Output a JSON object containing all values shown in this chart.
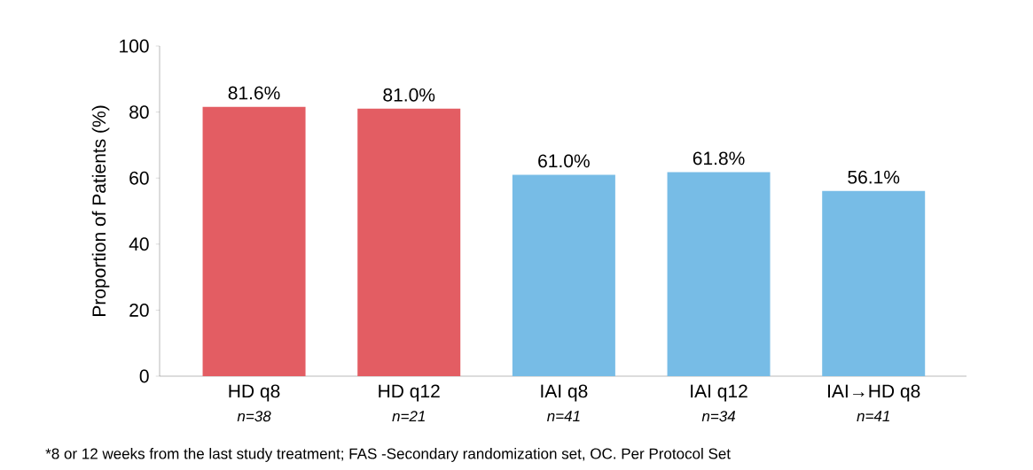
{
  "chart_data": {
    "type": "bar",
    "ylabel": "Proportion of Patients (%)",
    "categories": [
      "HD q8",
      "HD q12",
      "IAI q8",
      "IAI q12",
      "IAI→HD q8"
    ],
    "values": [
      81.6,
      81.0,
      61.0,
      61.8,
      56.1
    ],
    "colors": [
      "#e35d63",
      "#e35d63",
      "#77bce6",
      "#77bce6",
      "#77bce6"
    ],
    "value_labels": [
      "81.6%",
      "81.0%",
      "61.0%",
      "61.8%",
      "56.1%"
    ],
    "ylim": [
      0,
      100
    ],
    "yticks": [
      0,
      20,
      40,
      60,
      80,
      100
    ],
    "annotations": [
      "*n=38*",
      "*n=21*",
      "*n=41*",
      "*n=34*",
      "*n=41*",
      "*8 or 12 weeks from the last study treatment; FAS -Secondary randomization set, OC. Per Protocol Set"
    ]
  }
}
